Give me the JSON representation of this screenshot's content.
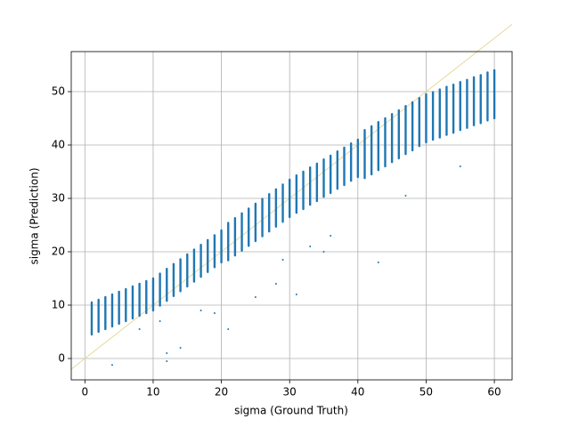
{
  "chart_data": {
    "type": "scatter",
    "xlabel": "sigma (Ground Truth)",
    "ylabel": "sigma (Prediction)",
    "x": [
      1,
      2,
      3,
      4,
      5,
      6,
      7,
      8,
      9,
      10,
      11,
      12,
      13,
      14,
      15,
      16,
      17,
      18,
      19,
      20,
      21,
      22,
      23,
      24,
      25,
      26,
      27,
      28,
      29,
      30,
      31,
      32,
      33,
      34,
      35,
      36,
      37,
      38,
      39,
      40,
      41,
      42,
      43,
      44,
      45,
      46,
      47,
      48,
      49,
      50,
      51,
      52,
      53,
      54,
      55,
      56,
      57,
      58,
      59,
      60
    ],
    "low": [
      4.5,
      5,
      5.5,
      6,
      6.5,
      7,
      7.5,
      8,
      8.5,
      9,
      9.9,
      10.8,
      11.7,
      12.6,
      13.5,
      14.4,
      15.3,
      16.2,
      17.1,
      18,
      18.4,
      19.3,
      20.2,
      21.1,
      22,
      22.9,
      23.8,
      24.7,
      25.6,
      26.5,
      27.3,
      28,
      28.8,
      29.5,
      30.3,
      31,
      31.8,
      32.5,
      33.3,
      34,
      33.8,
      34.5,
      35.3,
      36,
      36.8,
      37.5,
      38.3,
      39,
      39.8,
      40.5,
      41,
      41.4,
      41.9,
      42.3,
      42.8,
      43.2,
      43.7,
      44.1,
      44.6,
      45
    ],
    "high": [
      10.5,
      11,
      11.5,
      12,
      12.5,
      13,
      13.5,
      14,
      14.5,
      15,
      15.9,
      16.8,
      17.7,
      18.6,
      19.5,
      20.4,
      21.3,
      22.2,
      23.1,
      24,
      25.4,
      26.3,
      27.2,
      28.1,
      29,
      29.9,
      30.8,
      31.7,
      32.6,
      33.5,
      34.3,
      35,
      35.8,
      36.5,
      37.3,
      38,
      38.8,
      39.5,
      40.3,
      41,
      42.8,
      43.5,
      44.3,
      45,
      45.8,
      46.5,
      47.3,
      48,
      48.8,
      49.5,
      49.9,
      50.4,
      50.9,
      51.3,
      51.8,
      52.2,
      52.7,
      53.1,
      53.6,
      54
    ],
    "outliers_x": [
      4,
      12,
      12,
      11,
      21,
      25,
      31,
      29,
      28,
      43,
      33,
      35,
      47,
      55,
      36,
      19,
      17,
      14,
      8
    ],
    "outliers_y": [
      -1.2,
      -0.5,
      1,
      7,
      5.5,
      11.5,
      12,
      18.5,
      14,
      18,
      21,
      20,
      30.5,
      36,
      23,
      8.5,
      9,
      2,
      5.5
    ],
    "color": "#1f77b4",
    "identity_line_color": "#e6d99a",
    "xlim": [
      -2,
      62.6
    ],
    "ylim": [
      -4,
      57.5
    ],
    "xticks": [
      0,
      10,
      20,
      30,
      40,
      50,
      60
    ],
    "yticks": [
      0,
      10,
      20,
      30,
      40,
      50
    ],
    "grid": true
  }
}
